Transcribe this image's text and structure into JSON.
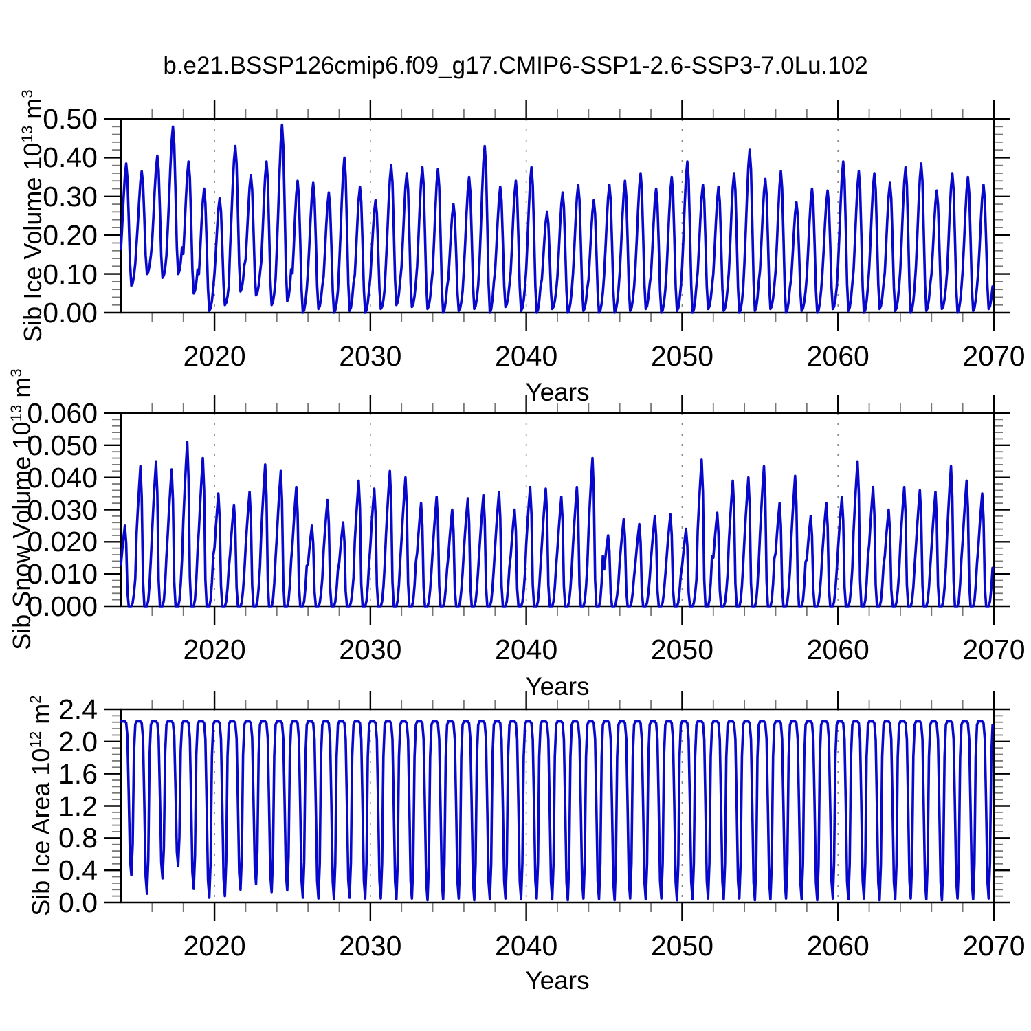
{
  "title": "b.e21.BSSP126cmip6.f09_g17.CMIP6-SSP1-2.6-SSP3-7.0Lu.102",
  "style": {
    "line_color": "#0808CC",
    "frame_color": "#000000",
    "grid_color": "#888888",
    "minor_tick_color": "#777777",
    "major_tick_color": "#000000",
    "background": "#FFFFFF"
  },
  "chart_data": [
    {
      "type": "line",
      "name": "sib-ice-volume",
      "title": "",
      "xlabel": "Years",
      "ylabel": "Sib Ice Volume 10^13 m^3",
      "x_range": [
        2014,
        2070
      ],
      "y_range": [
        0,
        0.5
      ],
      "x_major_ticks": [
        2020,
        2030,
        2040,
        2050,
        2060,
        2070
      ],
      "x_tick_labels": [
        "2020",
        "2030",
        "2040",
        "2050",
        "2060",
        "2070"
      ],
      "x_minor_step": 2,
      "y_major_step": 0.1,
      "y_minor_step": 0.02,
      "y_tick_decimals": 2,
      "y_tick_labels": [
        "0.00",
        "0.10",
        "0.20",
        "0.30",
        "0.40",
        "0.50"
      ],
      "grid_x_dashed": [
        2020,
        2030,
        2040,
        2050,
        2060
      ],
      "grid": "vertical-dashed-only",
      "legend": "none",
      "years": [
        2014,
        2015,
        2016,
        2017,
        2018,
        2019,
        2020,
        2021,
        2022,
        2023,
        2024,
        2025,
        2026,
        2027,
        2028,
        2029,
        2030,
        2031,
        2032,
        2033,
        2034,
        2035,
        2036,
        2037,
        2038,
        2039,
        2040,
        2041,
        2042,
        2043,
        2044,
        2045,
        2046,
        2047,
        2048,
        2049,
        2050,
        2051,
        2052,
        2053,
        2054,
        2055,
        2056,
        2057,
        2058,
        2059,
        2060,
        2061,
        2062,
        2063,
        2064,
        2065,
        2066,
        2067,
        2068,
        2069
      ],
      "annual_max": [
        0.385,
        0.365,
        0.405,
        0.48,
        0.39,
        0.32,
        0.295,
        0.43,
        0.355,
        0.39,
        0.485,
        0.34,
        0.335,
        0.31,
        0.4,
        0.325,
        0.29,
        0.38,
        0.36,
        0.375,
        0.37,
        0.28,
        0.35,
        0.43,
        0.325,
        0.34,
        0.375,
        0.26,
        0.31,
        0.33,
        0.29,
        0.33,
        0.34,
        0.36,
        0.32,
        0.35,
        0.39,
        0.33,
        0.325,
        0.36,
        0.42,
        0.345,
        0.365,
        0.285,
        0.32,
        0.315,
        0.39,
        0.365,
        0.36,
        0.335,
        0.375,
        0.385,
        0.315,
        0.36,
        0.35,
        0.33
      ],
      "annual_min": [
        0.07,
        0.1,
        0.09,
        0.1,
        0.05,
        0.005,
        0.02,
        0.055,
        0.045,
        0.02,
        0.03,
        0,
        0.01,
        0,
        0.005,
        0,
        0.01,
        0.02,
        0.015,
        0.01,
        0,
        0.005,
        0.01,
        0,
        0.015,
        0.005,
        0,
        0.01,
        0,
        0.005,
        0,
        0,
        0.005,
        0.01,
        0,
        0.005,
        0,
        0.01,
        0.005,
        0,
        0.005,
        0.01,
        0,
        0.005,
        0,
        0.01,
        0.005,
        0,
        0.01,
        0.005,
        0,
        0.005,
        0.01,
        0,
        0.005,
        0.01
      ],
      "seasonal_profile_month_fraction": [
        0.3,
        0.5,
        0.72,
        0.9,
        1.0,
        0.88,
        0.55,
        0.18,
        0.0,
        0.02,
        0.08,
        0.18
      ]
    },
    {
      "type": "line",
      "name": "sib-snow-volume",
      "title": "",
      "xlabel": "Years",
      "ylabel": "Sib Snow Volume 10^13 m^3",
      "x_range": [
        2014,
        2070
      ],
      "y_range": [
        0,
        0.06
      ],
      "x_major_ticks": [
        2020,
        2030,
        2040,
        2050,
        2060,
        2070
      ],
      "x_tick_labels": [
        "2020",
        "2030",
        "2040",
        "2050",
        "2060",
        "2070"
      ],
      "x_minor_step": 2,
      "y_major_step": 0.01,
      "y_minor_step": 0.002,
      "y_tick_decimals": 3,
      "y_tick_labels": [
        "0.000",
        "0.010",
        "0.020",
        "0.030",
        "0.040",
        "0.050",
        "0.060"
      ],
      "grid_x_dashed": [
        2020,
        2030,
        2040,
        2050,
        2060
      ],
      "grid": "vertical-dashed-only",
      "legend": "none",
      "years": [
        2014,
        2015,
        2016,
        2017,
        2018,
        2019,
        2020,
        2021,
        2022,
        2023,
        2024,
        2025,
        2026,
        2027,
        2028,
        2029,
        2030,
        2031,
        2032,
        2033,
        2034,
        2035,
        2036,
        2037,
        2038,
        2039,
        2040,
        2041,
        2042,
        2043,
        2044,
        2045,
        2046,
        2047,
        2048,
        2049,
        2050,
        2051,
        2052,
        2053,
        2054,
        2055,
        2056,
        2057,
        2058,
        2059,
        2060,
        2061,
        2062,
        2063,
        2064,
        2065,
        2066,
        2067,
        2068,
        2069
      ],
      "annual_max": [
        0.025,
        0.0435,
        0.045,
        0.0425,
        0.051,
        0.046,
        0.035,
        0.0315,
        0.0355,
        0.044,
        0.042,
        0.037,
        0.025,
        0.033,
        0.026,
        0.039,
        0.0365,
        0.042,
        0.04,
        0.032,
        0.034,
        0.03,
        0.0335,
        0.0345,
        0.0355,
        0.03,
        0.037,
        0.0365,
        0.034,
        0.037,
        0.046,
        0.022,
        0.027,
        0.0255,
        0.028,
        0.0285,
        0.024,
        0.0455,
        0.029,
        0.039,
        0.04,
        0.0435,
        0.032,
        0.0405,
        0.028,
        0.032,
        0.034,
        0.045,
        0.037,
        0.03,
        0.037,
        0.036,
        0.0355,
        0.0435,
        0.039,
        0.035
      ],
      "annual_min": [
        0,
        0,
        0,
        0,
        0,
        0,
        0,
        0,
        0,
        0,
        0,
        0,
        0,
        0,
        0,
        0,
        0,
        0,
        0,
        0,
        0,
        0,
        0,
        0,
        0,
        0,
        0,
        0,
        0,
        0,
        0,
        0,
        0,
        0,
        0,
        0,
        0,
        0,
        0,
        0,
        0,
        0,
        0,
        0,
        0,
        0,
        0,
        0,
        0,
        0,
        0,
        0,
        0,
        0,
        0,
        0
      ],
      "seasonal_profile_month_fraction": [
        0.52,
        0.7,
        0.86,
        1.0,
        0.78,
        0.18,
        0.0,
        0.0,
        0.0,
        0.04,
        0.16,
        0.34
      ]
    },
    {
      "type": "line",
      "name": "sib-ice-area",
      "title": "",
      "xlabel": "Years",
      "ylabel": "Sib Ice Area 10^12 m^2",
      "x_range": [
        2014,
        2070
      ],
      "y_range": [
        0,
        2.4
      ],
      "x_major_ticks": [
        2020,
        2030,
        2040,
        2050,
        2060,
        2070
      ],
      "x_tick_labels": [
        "2020",
        "2030",
        "2040",
        "2050",
        "2060",
        "2070"
      ],
      "x_minor_step": 2,
      "y_major_step": 0.4,
      "y_minor_step": 0.08,
      "y_tick_decimals": 1,
      "y_tick_labels": [
        "0.0",
        "0.4",
        "0.8",
        "1.2",
        "1.6",
        "2.0",
        "2.4"
      ],
      "grid_x_dashed": [
        2020,
        2030,
        2040,
        2050,
        2060
      ],
      "grid": "vertical-dashed-only",
      "legend": "none",
      "years": [
        2014,
        2015,
        2016,
        2017,
        2018,
        2019,
        2020,
        2021,
        2022,
        2023,
        2024,
        2025,
        2026,
        2027,
        2028,
        2029,
        2030,
        2031,
        2032,
        2033,
        2034,
        2035,
        2036,
        2037,
        2038,
        2039,
        2040,
        2041,
        2042,
        2043,
        2044,
        2045,
        2046,
        2047,
        2048,
        2049,
        2050,
        2051,
        2052,
        2053,
        2054,
        2055,
        2056,
        2057,
        2058,
        2059,
        2060,
        2061,
        2062,
        2063,
        2064,
        2065,
        2066,
        2067,
        2068,
        2069
      ],
      "annual_max": [
        2.25,
        2.25,
        2.25,
        2.25,
        2.25,
        2.25,
        2.25,
        2.25,
        2.25,
        2.25,
        2.25,
        2.25,
        2.25,
        2.25,
        2.25,
        2.25,
        2.25,
        2.25,
        2.25,
        2.25,
        2.25,
        2.25,
        2.25,
        2.25,
        2.25,
        2.25,
        2.25,
        2.25,
        2.25,
        2.25,
        2.25,
        2.25,
        2.25,
        2.25,
        2.25,
        2.25,
        2.25,
        2.25,
        2.25,
        2.25,
        2.25,
        2.25,
        2.25,
        2.25,
        2.25,
        2.25,
        2.25,
        2.25,
        2.25,
        2.25,
        2.25,
        2.25,
        2.25,
        2.25,
        2.25,
        2.25
      ],
      "annual_min": [
        0.34,
        0.11,
        0.3,
        0.45,
        0.17,
        0.06,
        0.08,
        0.16,
        0.23,
        0.13,
        0.15,
        0.06,
        0.05,
        0.04,
        0.06,
        0.05,
        0.05,
        0.04,
        0.05,
        0.03,
        0.04,
        0.05,
        0.03,
        0.04,
        0.05,
        0.04,
        0.05,
        0.04,
        0.03,
        0.05,
        0.04,
        0.03,
        0.05,
        0.04,
        0.05,
        0.03,
        0.04,
        0.05,
        0.04,
        0.05,
        0.03,
        0.04,
        0.05,
        0.04,
        0.03,
        0.05,
        0.04,
        0.05,
        0.03,
        0.04,
        0.05,
        0.04,
        0.03,
        0.05,
        0.04,
        0.05
      ],
      "seasonal_profile_month_fraction": [
        1.0,
        1.0,
        1.0,
        1.0,
        0.99,
        0.9,
        0.52,
        0.1,
        0.0,
        0.2,
        0.8,
        0.98
      ]
    }
  ]
}
